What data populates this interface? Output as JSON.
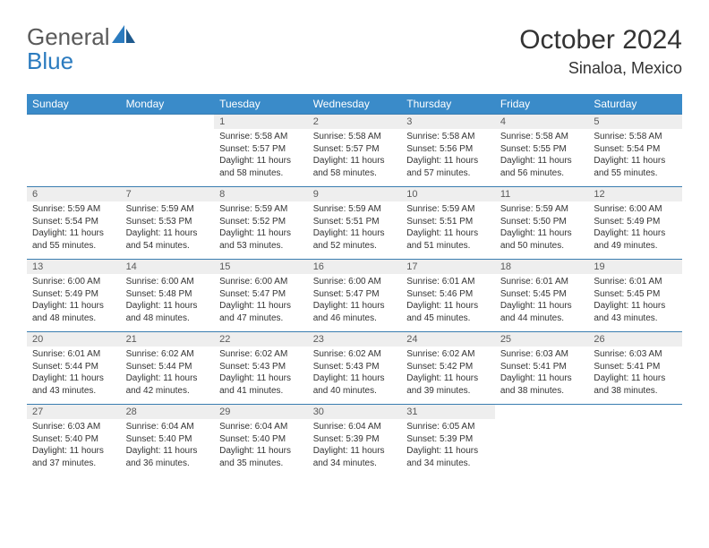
{
  "brand": {
    "part1": "General",
    "part2": "Blue"
  },
  "title": "October 2024",
  "location": "Sinaloa, Mexico",
  "colors": {
    "header_bg": "#3a8bc9",
    "header_fg": "#ffffff",
    "daynum_bg": "#eeeeee",
    "border": "#3a7db0",
    "text": "#333333"
  },
  "weekdays": [
    "Sunday",
    "Monday",
    "Tuesday",
    "Wednesday",
    "Thursday",
    "Friday",
    "Saturday"
  ],
  "weeks": [
    [
      null,
      null,
      {
        "n": "1",
        "sr": "Sunrise: 5:58 AM",
        "ss": "Sunset: 5:57 PM",
        "d1": "Daylight: 11 hours",
        "d2": "and 58 minutes."
      },
      {
        "n": "2",
        "sr": "Sunrise: 5:58 AM",
        "ss": "Sunset: 5:57 PM",
        "d1": "Daylight: 11 hours",
        "d2": "and 58 minutes."
      },
      {
        "n": "3",
        "sr": "Sunrise: 5:58 AM",
        "ss": "Sunset: 5:56 PM",
        "d1": "Daylight: 11 hours",
        "d2": "and 57 minutes."
      },
      {
        "n": "4",
        "sr": "Sunrise: 5:58 AM",
        "ss": "Sunset: 5:55 PM",
        "d1": "Daylight: 11 hours",
        "d2": "and 56 minutes."
      },
      {
        "n": "5",
        "sr": "Sunrise: 5:58 AM",
        "ss": "Sunset: 5:54 PM",
        "d1": "Daylight: 11 hours",
        "d2": "and 55 minutes."
      }
    ],
    [
      {
        "n": "6",
        "sr": "Sunrise: 5:59 AM",
        "ss": "Sunset: 5:54 PM",
        "d1": "Daylight: 11 hours",
        "d2": "and 55 minutes."
      },
      {
        "n": "7",
        "sr": "Sunrise: 5:59 AM",
        "ss": "Sunset: 5:53 PM",
        "d1": "Daylight: 11 hours",
        "d2": "and 54 minutes."
      },
      {
        "n": "8",
        "sr": "Sunrise: 5:59 AM",
        "ss": "Sunset: 5:52 PM",
        "d1": "Daylight: 11 hours",
        "d2": "and 53 minutes."
      },
      {
        "n": "9",
        "sr": "Sunrise: 5:59 AM",
        "ss": "Sunset: 5:51 PM",
        "d1": "Daylight: 11 hours",
        "d2": "and 52 minutes."
      },
      {
        "n": "10",
        "sr": "Sunrise: 5:59 AM",
        "ss": "Sunset: 5:51 PM",
        "d1": "Daylight: 11 hours",
        "d2": "and 51 minutes."
      },
      {
        "n": "11",
        "sr": "Sunrise: 5:59 AM",
        "ss": "Sunset: 5:50 PM",
        "d1": "Daylight: 11 hours",
        "d2": "and 50 minutes."
      },
      {
        "n": "12",
        "sr": "Sunrise: 6:00 AM",
        "ss": "Sunset: 5:49 PM",
        "d1": "Daylight: 11 hours",
        "d2": "and 49 minutes."
      }
    ],
    [
      {
        "n": "13",
        "sr": "Sunrise: 6:00 AM",
        "ss": "Sunset: 5:49 PM",
        "d1": "Daylight: 11 hours",
        "d2": "and 48 minutes."
      },
      {
        "n": "14",
        "sr": "Sunrise: 6:00 AM",
        "ss": "Sunset: 5:48 PM",
        "d1": "Daylight: 11 hours",
        "d2": "and 48 minutes."
      },
      {
        "n": "15",
        "sr": "Sunrise: 6:00 AM",
        "ss": "Sunset: 5:47 PM",
        "d1": "Daylight: 11 hours",
        "d2": "and 47 minutes."
      },
      {
        "n": "16",
        "sr": "Sunrise: 6:00 AM",
        "ss": "Sunset: 5:47 PM",
        "d1": "Daylight: 11 hours",
        "d2": "and 46 minutes."
      },
      {
        "n": "17",
        "sr": "Sunrise: 6:01 AM",
        "ss": "Sunset: 5:46 PM",
        "d1": "Daylight: 11 hours",
        "d2": "and 45 minutes."
      },
      {
        "n": "18",
        "sr": "Sunrise: 6:01 AM",
        "ss": "Sunset: 5:45 PM",
        "d1": "Daylight: 11 hours",
        "d2": "and 44 minutes."
      },
      {
        "n": "19",
        "sr": "Sunrise: 6:01 AM",
        "ss": "Sunset: 5:45 PM",
        "d1": "Daylight: 11 hours",
        "d2": "and 43 minutes."
      }
    ],
    [
      {
        "n": "20",
        "sr": "Sunrise: 6:01 AM",
        "ss": "Sunset: 5:44 PM",
        "d1": "Daylight: 11 hours",
        "d2": "and 43 minutes."
      },
      {
        "n": "21",
        "sr": "Sunrise: 6:02 AM",
        "ss": "Sunset: 5:44 PM",
        "d1": "Daylight: 11 hours",
        "d2": "and 42 minutes."
      },
      {
        "n": "22",
        "sr": "Sunrise: 6:02 AM",
        "ss": "Sunset: 5:43 PM",
        "d1": "Daylight: 11 hours",
        "d2": "and 41 minutes."
      },
      {
        "n": "23",
        "sr": "Sunrise: 6:02 AM",
        "ss": "Sunset: 5:43 PM",
        "d1": "Daylight: 11 hours",
        "d2": "and 40 minutes."
      },
      {
        "n": "24",
        "sr": "Sunrise: 6:02 AM",
        "ss": "Sunset: 5:42 PM",
        "d1": "Daylight: 11 hours",
        "d2": "and 39 minutes."
      },
      {
        "n": "25",
        "sr": "Sunrise: 6:03 AM",
        "ss": "Sunset: 5:41 PM",
        "d1": "Daylight: 11 hours",
        "d2": "and 38 minutes."
      },
      {
        "n": "26",
        "sr": "Sunrise: 6:03 AM",
        "ss": "Sunset: 5:41 PM",
        "d1": "Daylight: 11 hours",
        "d2": "and 38 minutes."
      }
    ],
    [
      {
        "n": "27",
        "sr": "Sunrise: 6:03 AM",
        "ss": "Sunset: 5:40 PM",
        "d1": "Daylight: 11 hours",
        "d2": "and 37 minutes."
      },
      {
        "n": "28",
        "sr": "Sunrise: 6:04 AM",
        "ss": "Sunset: 5:40 PM",
        "d1": "Daylight: 11 hours",
        "d2": "and 36 minutes."
      },
      {
        "n": "29",
        "sr": "Sunrise: 6:04 AM",
        "ss": "Sunset: 5:40 PM",
        "d1": "Daylight: 11 hours",
        "d2": "and 35 minutes."
      },
      {
        "n": "30",
        "sr": "Sunrise: 6:04 AM",
        "ss": "Sunset: 5:39 PM",
        "d1": "Daylight: 11 hours",
        "d2": "and 34 minutes."
      },
      {
        "n": "31",
        "sr": "Sunrise: 6:05 AM",
        "ss": "Sunset: 5:39 PM",
        "d1": "Daylight: 11 hours",
        "d2": "and 34 minutes."
      },
      null,
      null
    ]
  ]
}
